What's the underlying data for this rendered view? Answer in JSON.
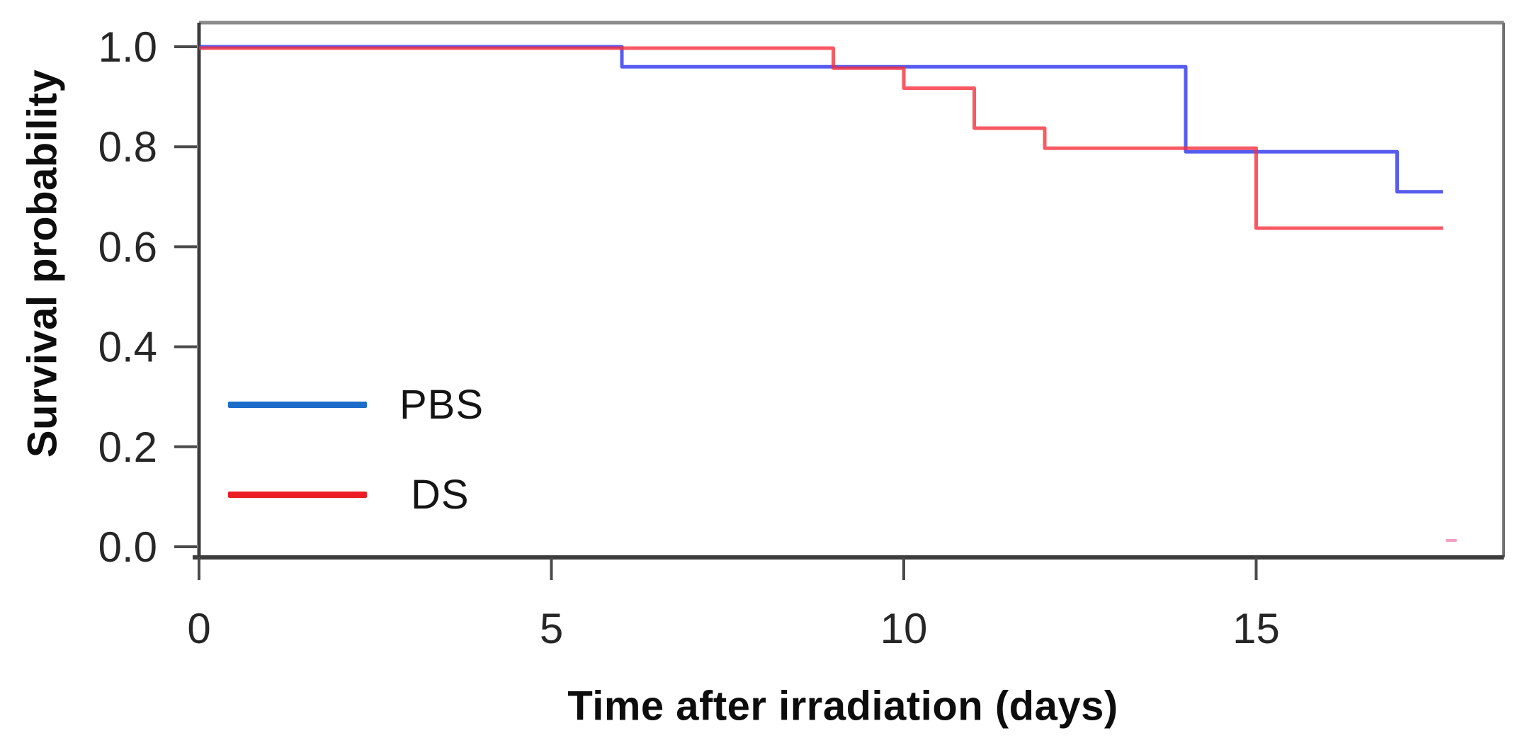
{
  "chart_data": {
    "type": "line",
    "variant": "kaplan-meier-survival-step",
    "title": "",
    "xlabel": "Time after irradiation (days)",
    "ylabel": "Survival probability",
    "x": {
      "ticks": [
        0,
        5,
        10,
        15
      ],
      "tick_labels": [
        "0",
        "5",
        "10",
        "15"
      ],
      "range": [
        0,
        18.5
      ],
      "unit": "days"
    },
    "y": {
      "ticks": [
        1.0,
        0.8,
        0.6,
        0.4,
        0.2,
        0.0
      ],
      "tick_labels": [
        "1.0",
        "0.8",
        "0.6",
        "0.4",
        "0.2",
        "0.0"
      ],
      "range": [
        0,
        1.04
      ]
    },
    "grid": false,
    "legend": {
      "position": "inside lower-left",
      "entries": [
        {
          "label": "PBS",
          "color": "#1c6cc9"
        },
        {
          "label": "DS",
          "color": "#ec1c24"
        }
      ]
    },
    "series": [
      {
        "name": "PBS",
        "color": "#3a40ec",
        "opacity": 0.85,
        "end_day": 17.65,
        "steps": [
          {
            "day": 0,
            "survival": 1.0
          },
          {
            "day": 6,
            "survival": 0.96
          },
          {
            "day": 14,
            "survival": 0.79
          },
          {
            "day": 17,
            "survival": 0.71
          }
        ]
      },
      {
        "name": "DS",
        "color": "#f6303c",
        "opacity": 0.8,
        "end_day": 17.65,
        "steps": [
          {
            "day": 0,
            "survival": 1.0
          },
          {
            "day": 9,
            "survival": 0.96
          },
          {
            "day": 10,
            "survival": 0.92
          },
          {
            "day": 11,
            "survival": 0.84
          },
          {
            "day": 12,
            "survival": 0.8
          },
          {
            "day": 15,
            "survival": 0.64
          }
        ]
      }
    ]
  },
  "annotations": {
    "stray_mark": {
      "color": "#ee7fad"
    }
  }
}
